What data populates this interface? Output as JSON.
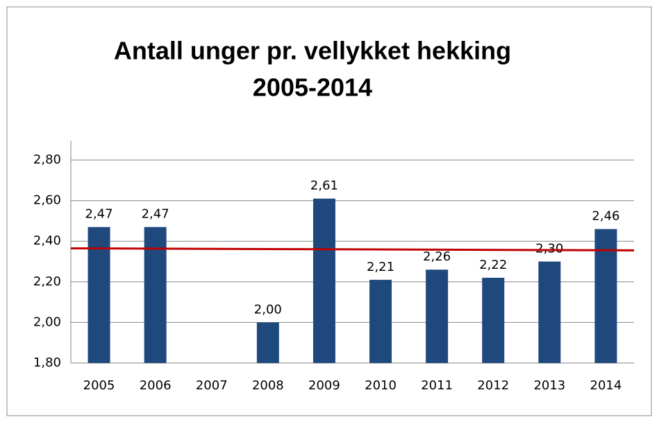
{
  "chart_data": {
    "type": "bar",
    "title": [
      "Antall unger pr. vellykket hekking",
      "2005-2014"
    ],
    "categories": [
      "2005",
      "2006",
      "2007",
      "2008",
      "2009",
      "2010",
      "2011",
      "2012",
      "2013",
      "2014"
    ],
    "values": [
      2.47,
      2.47,
      null,
      2.0,
      2.61,
      2.21,
      2.26,
      2.22,
      2.3,
      2.46
    ],
    "value_labels": [
      "2,47",
      "2,47",
      null,
      "2,00",
      "2,61",
      "2,21",
      "2,26",
      "2,22",
      "2,30",
      "2,46"
    ],
    "color": "#1f497d",
    "trend_line": {
      "color": "#c00000",
      "values": [
        2.365,
        2.355
      ]
    },
    "ylim": [
      1.8,
      2.8
    ],
    "yticks": [
      {
        "value": 1.8,
        "label": "1,80"
      },
      {
        "value": 2.0,
        "label": "2,00"
      },
      {
        "value": 2.2,
        "label": "2,20"
      },
      {
        "value": 2.4,
        "label": "2,40"
      },
      {
        "value": 2.6,
        "label": "2,60"
      },
      {
        "value": 2.8,
        "label": "2,80"
      }
    ],
    "grid": true
  }
}
